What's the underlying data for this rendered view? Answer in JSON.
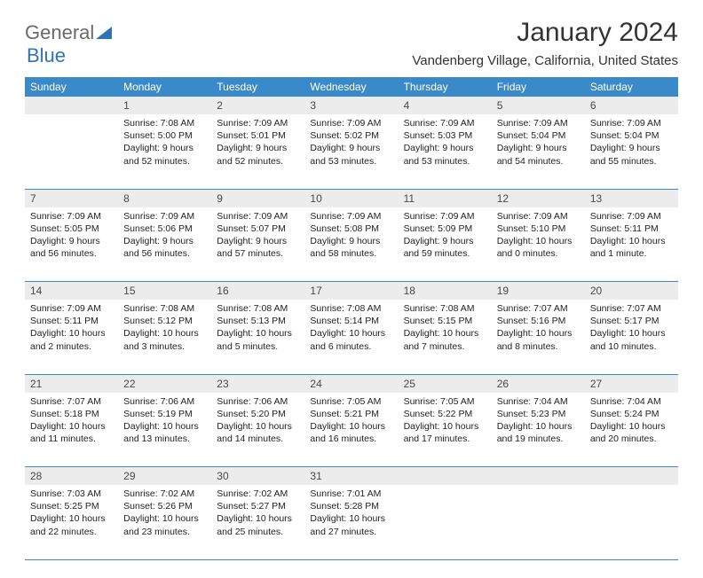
{
  "logo": {
    "line1": "General",
    "line2": "Blue"
  },
  "title": "January 2024",
  "location": "Vandenberg Village, California, United States",
  "colors": {
    "header_bg": "#3a8ac9",
    "header_fg": "#ffffff",
    "daynum_bg": "#ececec",
    "rule": "#3a8ac9",
    "logo_gray": "#6a6a6a",
    "logo_blue": "#2f74b5"
  },
  "weekdays": [
    "Sunday",
    "Monday",
    "Tuesday",
    "Wednesday",
    "Thursday",
    "Friday",
    "Saturday"
  ],
  "weeks": [
    {
      "nums": [
        "",
        "1",
        "2",
        "3",
        "4",
        "5",
        "6"
      ],
      "cells": [
        "",
        "Sunrise: 7:08 AM\nSunset: 5:00 PM\nDaylight: 9 hours and 52 minutes.",
        "Sunrise: 7:09 AM\nSunset: 5:01 PM\nDaylight: 9 hours and 52 minutes.",
        "Sunrise: 7:09 AM\nSunset: 5:02 PM\nDaylight: 9 hours and 53 minutes.",
        "Sunrise: 7:09 AM\nSunset: 5:03 PM\nDaylight: 9 hours and 53 minutes.",
        "Sunrise: 7:09 AM\nSunset: 5:04 PM\nDaylight: 9 hours and 54 minutes.",
        "Sunrise: 7:09 AM\nSunset: 5:04 PM\nDaylight: 9 hours and 55 minutes."
      ]
    },
    {
      "nums": [
        "7",
        "8",
        "9",
        "10",
        "11",
        "12",
        "13"
      ],
      "cells": [
        "Sunrise: 7:09 AM\nSunset: 5:05 PM\nDaylight: 9 hours and 56 minutes.",
        "Sunrise: 7:09 AM\nSunset: 5:06 PM\nDaylight: 9 hours and 56 minutes.",
        "Sunrise: 7:09 AM\nSunset: 5:07 PM\nDaylight: 9 hours and 57 minutes.",
        "Sunrise: 7:09 AM\nSunset: 5:08 PM\nDaylight: 9 hours and 58 minutes.",
        "Sunrise: 7:09 AM\nSunset: 5:09 PM\nDaylight: 9 hours and 59 minutes.",
        "Sunrise: 7:09 AM\nSunset: 5:10 PM\nDaylight: 10 hours and 0 minutes.",
        "Sunrise: 7:09 AM\nSunset: 5:11 PM\nDaylight: 10 hours and 1 minute."
      ]
    },
    {
      "nums": [
        "14",
        "15",
        "16",
        "17",
        "18",
        "19",
        "20"
      ],
      "cells": [
        "Sunrise: 7:09 AM\nSunset: 5:11 PM\nDaylight: 10 hours and 2 minutes.",
        "Sunrise: 7:08 AM\nSunset: 5:12 PM\nDaylight: 10 hours and 3 minutes.",
        "Sunrise: 7:08 AM\nSunset: 5:13 PM\nDaylight: 10 hours and 5 minutes.",
        "Sunrise: 7:08 AM\nSunset: 5:14 PM\nDaylight: 10 hours and 6 minutes.",
        "Sunrise: 7:08 AM\nSunset: 5:15 PM\nDaylight: 10 hours and 7 minutes.",
        "Sunrise: 7:07 AM\nSunset: 5:16 PM\nDaylight: 10 hours and 8 minutes.",
        "Sunrise: 7:07 AM\nSunset: 5:17 PM\nDaylight: 10 hours and 10 minutes."
      ]
    },
    {
      "nums": [
        "21",
        "22",
        "23",
        "24",
        "25",
        "26",
        "27"
      ],
      "cells": [
        "Sunrise: 7:07 AM\nSunset: 5:18 PM\nDaylight: 10 hours and 11 minutes.",
        "Sunrise: 7:06 AM\nSunset: 5:19 PM\nDaylight: 10 hours and 13 minutes.",
        "Sunrise: 7:06 AM\nSunset: 5:20 PM\nDaylight: 10 hours and 14 minutes.",
        "Sunrise: 7:05 AM\nSunset: 5:21 PM\nDaylight: 10 hours and 16 minutes.",
        "Sunrise: 7:05 AM\nSunset: 5:22 PM\nDaylight: 10 hours and 17 minutes.",
        "Sunrise: 7:04 AM\nSunset: 5:23 PM\nDaylight: 10 hours and 19 minutes.",
        "Sunrise: 7:04 AM\nSunset: 5:24 PM\nDaylight: 10 hours and 20 minutes."
      ]
    },
    {
      "nums": [
        "28",
        "29",
        "30",
        "31",
        "",
        "",
        ""
      ],
      "cells": [
        "Sunrise: 7:03 AM\nSunset: 5:25 PM\nDaylight: 10 hours and 22 minutes.",
        "Sunrise: 7:02 AM\nSunset: 5:26 PM\nDaylight: 10 hours and 23 minutes.",
        "Sunrise: 7:02 AM\nSunset: 5:27 PM\nDaylight: 10 hours and 25 minutes.",
        "Sunrise: 7:01 AM\nSunset: 5:28 PM\nDaylight: 10 hours and 27 minutes.",
        "",
        "",
        ""
      ]
    }
  ]
}
